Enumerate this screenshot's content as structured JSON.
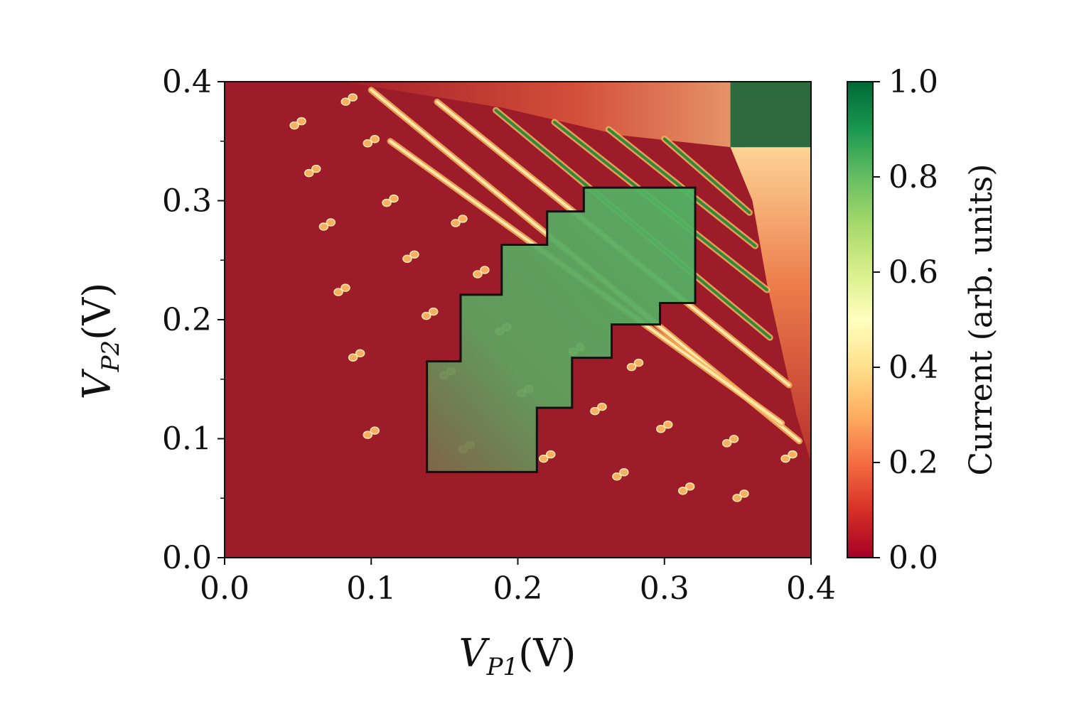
{
  "chart_data": {
    "type": "heatmap",
    "xlabel": "V_P1(V)",
    "xlabel_main": "V",
    "xlabel_sub": "P1",
    "xlabel_unit": "(V)",
    "ylabel": "V_P2(V)",
    "ylabel_main": "V",
    "ylabel_sub": "P2",
    "ylabel_unit": "(V)",
    "xlim": [
      0.0,
      0.4
    ],
    "ylim": [
      0.0,
      0.4
    ],
    "xticks": [
      "0.0",
      "0.1",
      "0.2",
      "0.3",
      "0.4"
    ],
    "yticks": [
      "0.0",
      "0.1",
      "0.2",
      "0.3",
      "0.4"
    ],
    "colorbar": {
      "label": "Current (arb. units)",
      "range": [
        0.0,
        1.0
      ],
      "ticks": [
        "0.0",
        "0.2",
        "0.4",
        "0.6",
        "0.8",
        "1.0"
      ],
      "colormap": "RdYlGn",
      "colors": [
        "#a50026",
        "#d73027",
        "#f46d43",
        "#fdae61",
        "#fee08b",
        "#ffffbf",
        "#d9ef8b",
        "#a6d96a",
        "#66bd63",
        "#1a9850",
        "#006837"
      ]
    },
    "background_value": 0.0,
    "transition_lines": [
      {
        "x1": 0.1,
        "y1": 0.393,
        "x2": 0.392,
        "y2": 0.098
      },
      {
        "x1": 0.113,
        "y1": 0.35,
        "x2": 0.38,
        "y2": 0.113
      },
      {
        "x1": 0.145,
        "y1": 0.383,
        "x2": 0.385,
        "y2": 0.145
      },
      {
        "x1": 0.185,
        "y1": 0.376,
        "x2": 0.372,
        "y2": 0.185
      },
      {
        "x1": 0.225,
        "y1": 0.366,
        "x2": 0.37,
        "y2": 0.225
      },
      {
        "x1": 0.262,
        "y1": 0.36,
        "x2": 0.362,
        "y2": 0.262
      },
      {
        "x1": 0.3,
        "y1": 0.352,
        "x2": 0.358,
        "y2": 0.29
      }
    ],
    "dot_pairs": [
      [
        0.05,
        0.365
      ],
      [
        0.06,
        0.325
      ],
      [
        0.07,
        0.28
      ],
      [
        0.08,
        0.225
      ],
      [
        0.09,
        0.17
      ],
      [
        0.1,
        0.105
      ],
      [
        0.085,
        0.385
      ],
      [
        0.1,
        0.35
      ],
      [
        0.113,
        0.3
      ],
      [
        0.127,
        0.253
      ],
      [
        0.14,
        0.205
      ],
      [
        0.152,
        0.155
      ],
      [
        0.165,
        0.093
      ],
      [
        0.16,
        0.283
      ],
      [
        0.175,
        0.24
      ],
      [
        0.19,
        0.192
      ],
      [
        0.205,
        0.14
      ],
      [
        0.22,
        0.085
      ],
      [
        0.24,
        0.175
      ],
      [
        0.255,
        0.125
      ],
      [
        0.27,
        0.07
      ],
      [
        0.28,
        0.162
      ],
      [
        0.3,
        0.11
      ],
      [
        0.315,
        0.058
      ],
      [
        0.345,
        0.098
      ],
      [
        0.352,
        0.052
      ],
      [
        0.385,
        0.085
      ]
    ],
    "high_region": {
      "x": [
        0.345,
        0.4
      ],
      "y": [
        0.345,
        0.4
      ],
      "value": 1.0
    },
    "selected_region": [
      [
        0.138,
        0.072
      ],
      [
        0.213,
        0.072
      ],
      [
        0.213,
        0.126
      ],
      [
        0.237,
        0.126
      ],
      [
        0.237,
        0.168
      ],
      [
        0.264,
        0.168
      ],
      [
        0.264,
        0.196
      ],
      [
        0.297,
        0.196
      ],
      [
        0.297,
        0.214
      ],
      [
        0.321,
        0.214
      ],
      [
        0.321,
        0.311
      ],
      [
        0.245,
        0.311
      ],
      [
        0.245,
        0.291
      ],
      [
        0.22,
        0.291
      ],
      [
        0.22,
        0.263
      ],
      [
        0.189,
        0.263
      ],
      [
        0.189,
        0.221
      ],
      [
        0.161,
        0.221
      ],
      [
        0.161,
        0.165
      ],
      [
        0.138,
        0.165
      ]
    ]
  }
}
